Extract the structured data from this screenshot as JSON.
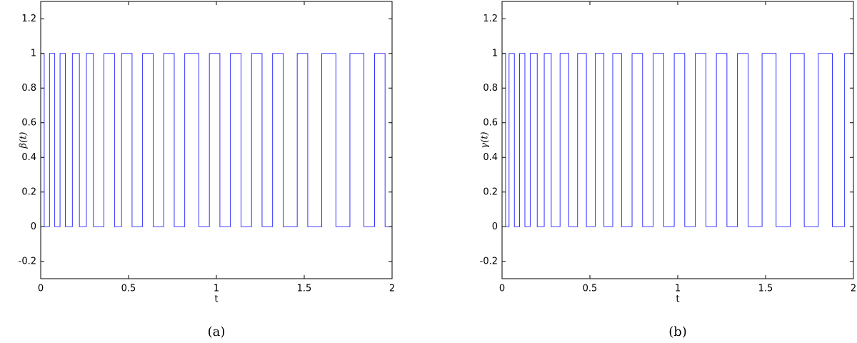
{
  "chart_data": [
    {
      "type": "line",
      "xlabel": "t",
      "ylabel": "β(t)",
      "caption": "(a)",
      "color": "#0000ff",
      "xlim": [
        0,
        2
      ],
      "ylim": [
        -0.3,
        1.3
      ],
      "xticks": [
        0,
        0.5,
        1,
        1.5,
        2
      ],
      "yticks": [
        -0.2,
        0,
        0.2,
        0.4,
        0.6,
        0.8,
        1,
        1.2
      ],
      "x": [
        0,
        0.02,
        0.02,
        0.05,
        0.05,
        0.08,
        0.08,
        0.11,
        0.11,
        0.14,
        0.14,
        0.18,
        0.18,
        0.22,
        0.22,
        0.26,
        0.26,
        0.3,
        0.3,
        0.36,
        0.36,
        0.42,
        0.42,
        0.46,
        0.46,
        0.52,
        0.52,
        0.58,
        0.58,
        0.64,
        0.64,
        0.7,
        0.7,
        0.76,
        0.76,
        0.82,
        0.82,
        0.9,
        0.9,
        0.96,
        0.96,
        1.02,
        1.02,
        1.08,
        1.08,
        1.14,
        1.14,
        1.2,
        1.2,
        1.26,
        1.26,
        1.32,
        1.32,
        1.38,
        1.38,
        1.46,
        1.46,
        1.52,
        1.52,
        1.6,
        1.6,
        1.68,
        1.68,
        1.76,
        1.76,
        1.84,
        1.84,
        1.9,
        1.9,
        1.96,
        1.96,
        2
      ],
      "values": [
        1,
        1,
        0,
        0,
        1,
        1,
        0,
        0,
        1,
        1,
        0,
        0,
        1,
        1,
        0,
        0,
        1,
        1,
        0,
        0,
        1,
        1,
        0,
        0,
        1,
        1,
        0,
        0,
        1,
        1,
        0,
        0,
        1,
        1,
        0,
        0,
        1,
        1,
        0,
        0,
        1,
        1,
        0,
        0,
        1,
        1,
        0,
        0,
        1,
        1,
        0,
        0,
        1,
        1,
        0,
        0,
        1,
        1,
        0,
        0,
        1,
        1,
        0,
        0,
        1,
        1,
        0,
        0,
        1,
        1,
        0,
        0
      ]
    },
    {
      "type": "line",
      "xlabel": "t",
      "ylabel": "γ(t)",
      "caption": "(b)",
      "color": "#0000ff",
      "xlim": [
        0,
        2
      ],
      "ylim": [
        -0.3,
        1.3
      ],
      "xticks": [
        0,
        0.5,
        1,
        1.5,
        2
      ],
      "yticks": [
        -0.2,
        0,
        0.2,
        0.4,
        0.6,
        0.8,
        1,
        1.2
      ],
      "x": [
        0,
        0.02,
        0.02,
        0.04,
        0.04,
        0.07,
        0.07,
        0.1,
        0.1,
        0.13,
        0.13,
        0.16,
        0.16,
        0.2,
        0.2,
        0.24,
        0.24,
        0.28,
        0.28,
        0.33,
        0.33,
        0.38,
        0.38,
        0.43,
        0.43,
        0.48,
        0.48,
        0.53,
        0.53,
        0.58,
        0.58,
        0.63,
        0.63,
        0.68,
        0.68,
        0.74,
        0.74,
        0.8,
        0.8,
        0.86,
        0.86,
        0.92,
        0.92,
        0.98,
        0.98,
        1.04,
        1.04,
        1.1,
        1.1,
        1.16,
        1.16,
        1.22,
        1.22,
        1.28,
        1.28,
        1.34,
        1.34,
        1.4,
        1.4,
        1.48,
        1.48,
        1.56,
        1.56,
        1.64,
        1.64,
        1.72,
        1.72,
        1.8,
        1.8,
        1.88,
        1.88,
        1.95,
        1.95,
        2
      ],
      "values": [
        1,
        1,
        0,
        0,
        1,
        1,
        0,
        0,
        1,
        1,
        0,
        0,
        1,
        1,
        0,
        0,
        1,
        1,
        0,
        0,
        1,
        1,
        0,
        0,
        1,
        1,
        0,
        0,
        1,
        1,
        0,
        0,
        1,
        1,
        0,
        0,
        1,
        1,
        0,
        0,
        1,
        1,
        0,
        0,
        1,
        1,
        0,
        0,
        1,
        1,
        0,
        0,
        1,
        1,
        0,
        0,
        1,
        1,
        0,
        0,
        1,
        1,
        0,
        0,
        1,
        1,
        0,
        0,
        1,
        1,
        0,
        0,
        1,
        1
      ]
    }
  ]
}
